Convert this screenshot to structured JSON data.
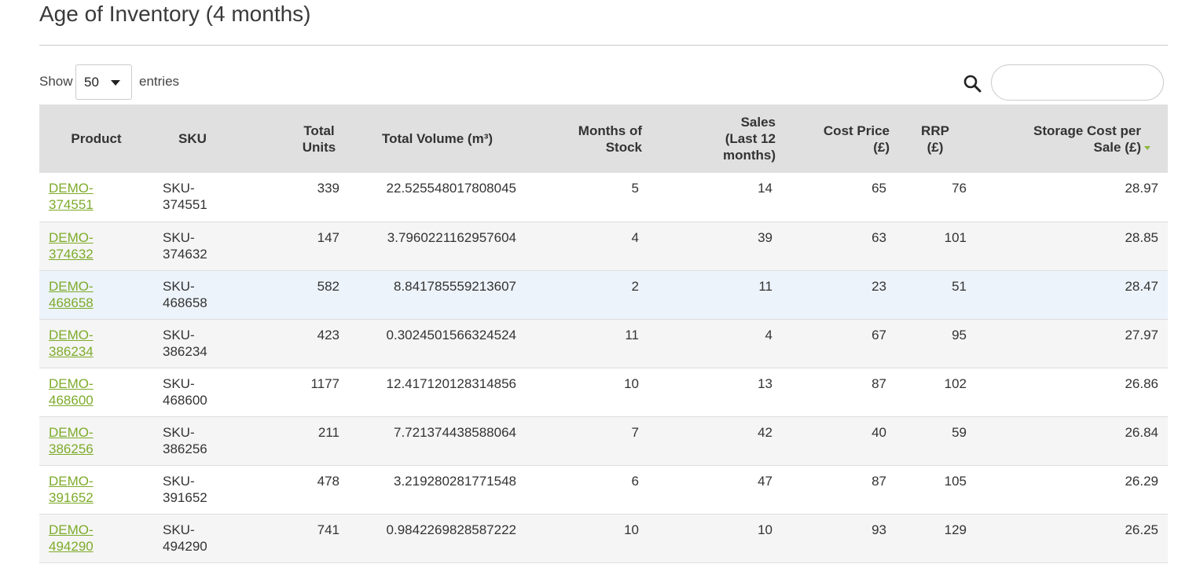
{
  "page": {
    "title": "Age of Inventory (4 months)"
  },
  "controls": {
    "show_label": "Show",
    "page_length": "50",
    "entries_label": "entries",
    "search_placeholder": ""
  },
  "table": {
    "columns": [
      "Product",
      "SKU",
      "Total Units",
      "Total Volume (m³)",
      "Months of Stock",
      "Sales (Last 12 months)",
      "Cost Price (£)",
      "RRP (£)",
      "Storage Cost per Sale (£)"
    ],
    "sorted_column": "Storage Cost per Sale (£)",
    "sort_direction": "descending",
    "rows": [
      {
        "product": "DEMO-374551",
        "sku": "SKU-374551",
        "units": "339",
        "volume": "22.525548017808045",
        "months": "5",
        "sales": "14",
        "cost": "65",
        "rrp": "76",
        "storage": "28.97"
      },
      {
        "product": "DEMO-374632",
        "sku": "SKU-374632",
        "units": "147",
        "volume": "3.7960221162957604",
        "months": "4",
        "sales": "39",
        "cost": "63",
        "rrp": "101",
        "storage": "28.85"
      },
      {
        "product": "DEMO-468658",
        "sku": "SKU-468658",
        "units": "582",
        "volume": "8.841785559213607",
        "months": "2",
        "sales": "11",
        "cost": "23",
        "rrp": "51",
        "storage": "28.47"
      },
      {
        "product": "DEMO-386234",
        "sku": "SKU-386234",
        "units": "423",
        "volume": "0.3024501566324524",
        "months": "11",
        "sales": "4",
        "cost": "67",
        "rrp": "95",
        "storage": "27.97"
      },
      {
        "product": "DEMO-468600",
        "sku": "SKU-468600",
        "units": "1177",
        "volume": "12.417120128314856",
        "months": "10",
        "sales": "13",
        "cost": "87",
        "rrp": "102",
        "storage": "26.86"
      },
      {
        "product": "DEMO-386256",
        "sku": "SKU-386256",
        "units": "211",
        "volume": "7.721374438588064",
        "months": "7",
        "sales": "42",
        "cost": "40",
        "rrp": "59",
        "storage": "26.84"
      },
      {
        "product": "DEMO-391652",
        "sku": "SKU-391652",
        "units": "478",
        "volume": "3.219280281771548",
        "months": "6",
        "sales": "47",
        "cost": "87",
        "rrp": "105",
        "storage": "26.29"
      },
      {
        "product": "DEMO-494290",
        "sku": "SKU-494290",
        "units": "741",
        "volume": "0.9842269828587222",
        "months": "10",
        "sales": "10",
        "cost": "93",
        "rrp": "129",
        "storage": "26.25"
      }
    ]
  },
  "colors": {
    "link": "#7dab2a",
    "header_bg": "#e0e0e0",
    "row_alt_bg": "#f5f5f5",
    "row_hover_bg": "#edf3fa"
  },
  "icons": {
    "search": "search-icon",
    "dropdown": "chevron-down-icon",
    "sort": "sort-descending-icon"
  }
}
